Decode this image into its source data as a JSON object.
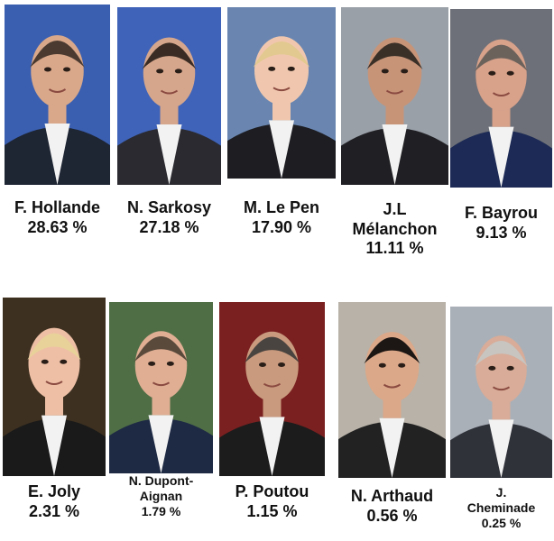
{
  "candidates": [
    {
      "name": "F. Hollande",
      "result": "28.63 %"
    },
    {
      "name": "N. Sarkosy",
      "result": "27.18 %"
    },
    {
      "name": "M. Le Pen",
      "result": "17.90 %"
    },
    {
      "name": "J.L Mélanchon",
      "result": "11.11 %"
    },
    {
      "name": "F. Bayrou",
      "result": "9.13 %"
    },
    {
      "name": "E. Joly",
      "result": "2.31 %"
    },
    {
      "name": "N. Dupont-Aignan",
      "result": "1.79 %"
    },
    {
      "name": "P. Poutou",
      "result": "1.15 %"
    },
    {
      "name": "N. Arthaud",
      "result": "0.56 %"
    },
    {
      "name": "J. Cheminade",
      "result": "0.25 %"
    }
  ]
}
